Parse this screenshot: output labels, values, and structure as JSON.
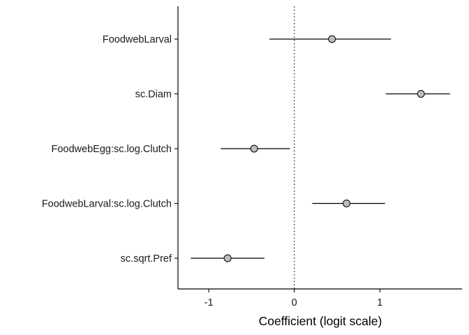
{
  "chart_data": {
    "type": "scatter",
    "subtype": "coefficient-plot",
    "title": "",
    "xlabel": "Coefficient (logit scale)",
    "ylabel": "",
    "xlim": [
      -1.36,
      1.96
    ],
    "xticks": [
      -1,
      0,
      1
    ],
    "xtick_labels": [
      "-1",
      "0",
      "1"
    ],
    "reference_line": {
      "x": 0,
      "style": "dotted"
    },
    "grid": false,
    "legend": "none",
    "colors": {
      "point_fill": "#bdbdbd",
      "point_stroke": "#000000",
      "line": "#000000"
    },
    "terms": [
      {
        "label": "FoodwebLarval",
        "estimate": 0.44,
        "lower": -0.29,
        "upper": 1.13
      },
      {
        "label": "sc.Diam",
        "estimate": 1.48,
        "lower": 1.07,
        "upper": 1.82
      },
      {
        "label": "FoodwebEgg:sc.log.Clutch",
        "estimate": -0.47,
        "lower": -0.86,
        "upper": -0.05
      },
      {
        "label": "FoodwebLarval:sc.log.Clutch",
        "estimate": 0.61,
        "lower": 0.21,
        "upper": 1.06
      },
      {
        "label": "sc.sqrt.Pref",
        "estimate": -0.78,
        "lower": -1.21,
        "upper": -0.35
      }
    ]
  }
}
